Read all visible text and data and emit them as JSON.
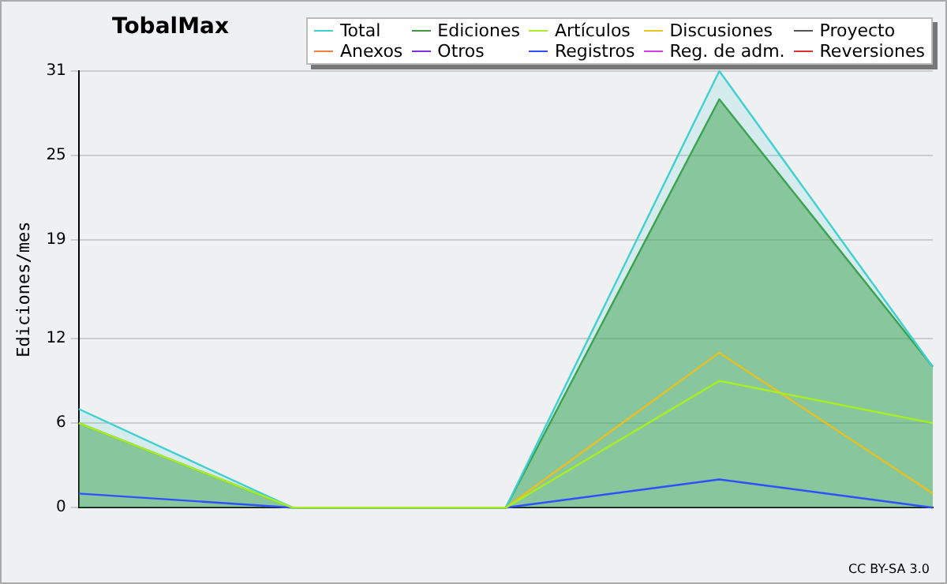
{
  "chart_data": {
    "type": "line",
    "title": "TobalMax",
    "ylabel": "Ediciones/mes",
    "categories": [
      null,
      null,
      null,
      null,
      null
    ],
    "series": [
      {
        "name": "Total",
        "type": "area",
        "color": "#40d0d0",
        "values": [
          7,
          0,
          0,
          31,
          10
        ]
      },
      {
        "name": "Ediciones",
        "type": "area",
        "color": "#3a9a3a",
        "values": [
          6,
          0,
          0,
          29,
          10
        ]
      },
      {
        "name": "Artículos",
        "color": "#aaee22",
        "values": [
          6,
          0,
          0,
          9,
          6
        ]
      },
      {
        "name": "Discusiones",
        "color": "#e8c020",
        "values": [
          null,
          null,
          0,
          11,
          1
        ]
      },
      {
        "name": "Proyecto",
        "color": "#555555",
        "values": [
          null,
          null,
          null,
          null,
          null
        ]
      },
      {
        "name": "Anexos",
        "color": "#f08040",
        "values": [
          null,
          null,
          null,
          null,
          null
        ]
      },
      {
        "name": "Otros",
        "color": "#8030e0",
        "values": [
          null,
          null,
          null,
          null,
          null
        ]
      },
      {
        "name": "Registros",
        "color": "#3050ff",
        "values": [
          1,
          0,
          0,
          2,
          0
        ]
      },
      {
        "name": "Reg. de adm.",
        "color": "#d040e0",
        "values": [
          null,
          null,
          null,
          null,
          null
        ]
      },
      {
        "name": "Reversiones",
        "color": "#e03030",
        "values": [
          null,
          null,
          null,
          null,
          null
        ]
      }
    ],
    "ylim": [
      0,
      31
    ],
    "yticks": [
      0,
      6,
      12,
      19,
      25,
      31
    ],
    "grid": "y",
    "legend": "top right",
    "marker": "none",
    "line_style": "solid",
    "annotations": [
      "CC BY-SA 3.0"
    ]
  }
}
